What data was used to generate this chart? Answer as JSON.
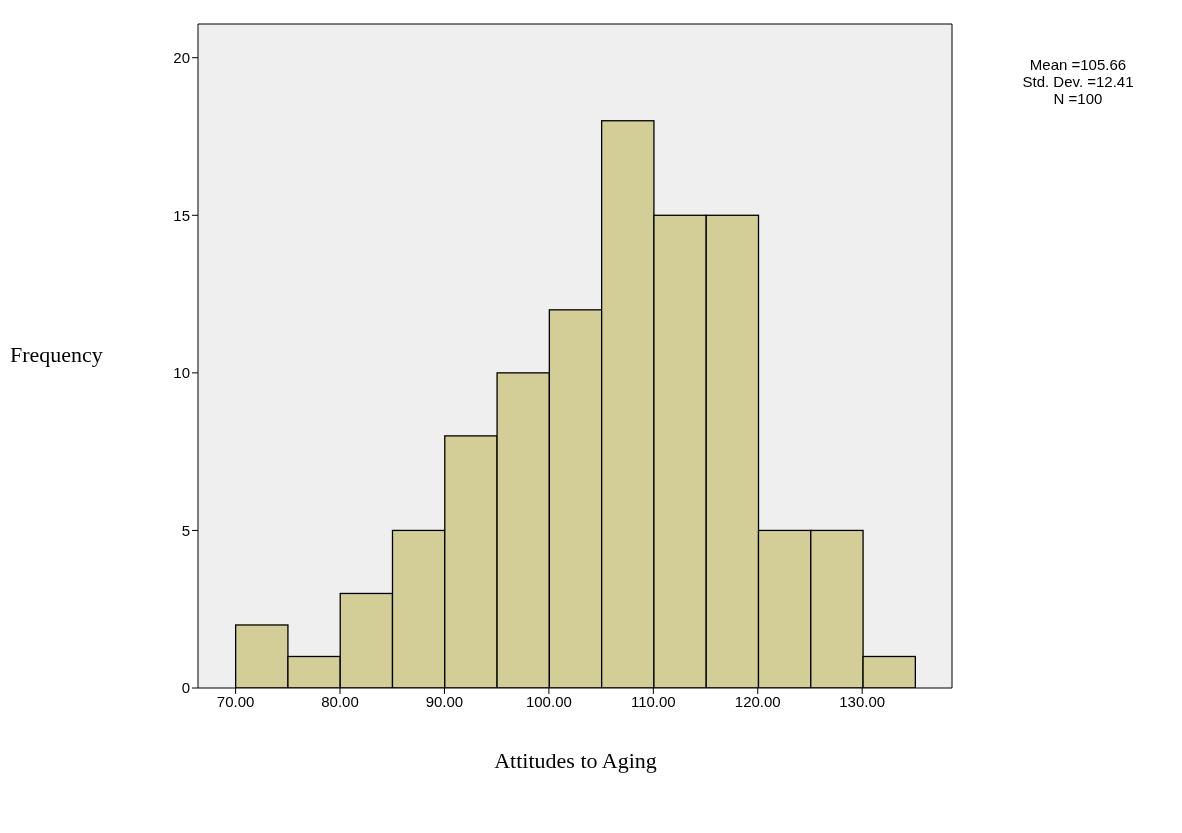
{
  "chart_data": {
    "type": "histogram",
    "xlabel": "Attitudes to Aging",
    "ylabel": "Frequency",
    "bins": [
      70,
      75,
      80,
      85,
      90,
      95,
      100,
      105,
      110,
      115,
      120,
      125,
      130,
      135
    ],
    "values": [
      2,
      1,
      3,
      5,
      8,
      10,
      12,
      18,
      15,
      15,
      5,
      5,
      1
    ],
    "color": "#d3ce97",
    "xlim": [
      66.4,
      138.6
    ],
    "ylim": [
      0,
      21.07
    ],
    "xticks": [
      {
        "value": 70,
        "label": "70.00"
      },
      {
        "value": 80,
        "label": "80.00"
      },
      {
        "value": 90,
        "label": "90.00"
      },
      {
        "value": 100,
        "label": "100.00"
      },
      {
        "value": 110,
        "label": "110.00"
      },
      {
        "value": 120,
        "label": "120.00"
      },
      {
        "value": 130,
        "label": "130.00"
      }
    ],
    "yticks": [
      0,
      5,
      10,
      15,
      20
    ],
    "annotations": [
      "Mean =105.66",
      "Std. Dev. =12.41",
      "N =100"
    ]
  }
}
